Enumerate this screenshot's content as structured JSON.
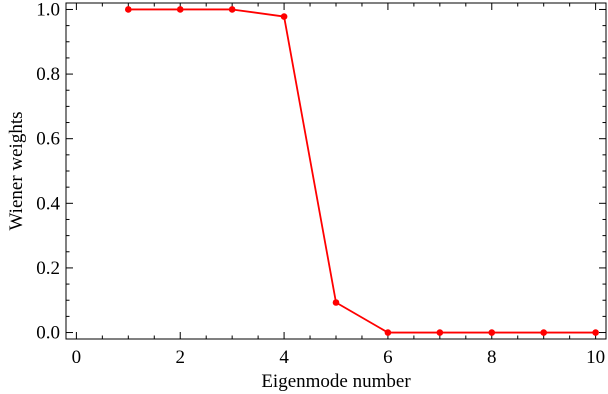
{
  "chart_data": {
    "type": "line",
    "xlabel": "Eigenmode number",
    "ylabel": "Wiener weights",
    "xlim": [
      -0.2,
      10.2
    ],
    "ylim": [
      -0.02,
      1.02
    ],
    "x_ticks": [
      0,
      2,
      4,
      6,
      8,
      10
    ],
    "x_tick_labels": [
      "0",
      "2",
      "4",
      "6",
      "8",
      "10"
    ],
    "y_ticks": [
      0.0,
      0.2,
      0.4,
      0.6,
      0.8,
      1.0
    ],
    "y_tick_labels": [
      "0.0",
      "0.2",
      "0.4",
      "0.6",
      "0.8",
      "1.0"
    ],
    "grid": false,
    "series": [
      {
        "color": "#ff0000",
        "x": [
          1,
          2,
          3,
          4,
          5,
          6,
          7,
          8,
          9,
          10
        ],
        "y": [
          1.0,
          1.0,
          1.0,
          0.978,
          0.093,
          0.0,
          0.0,
          0.0,
          0.0,
          0.0
        ]
      }
    ]
  }
}
